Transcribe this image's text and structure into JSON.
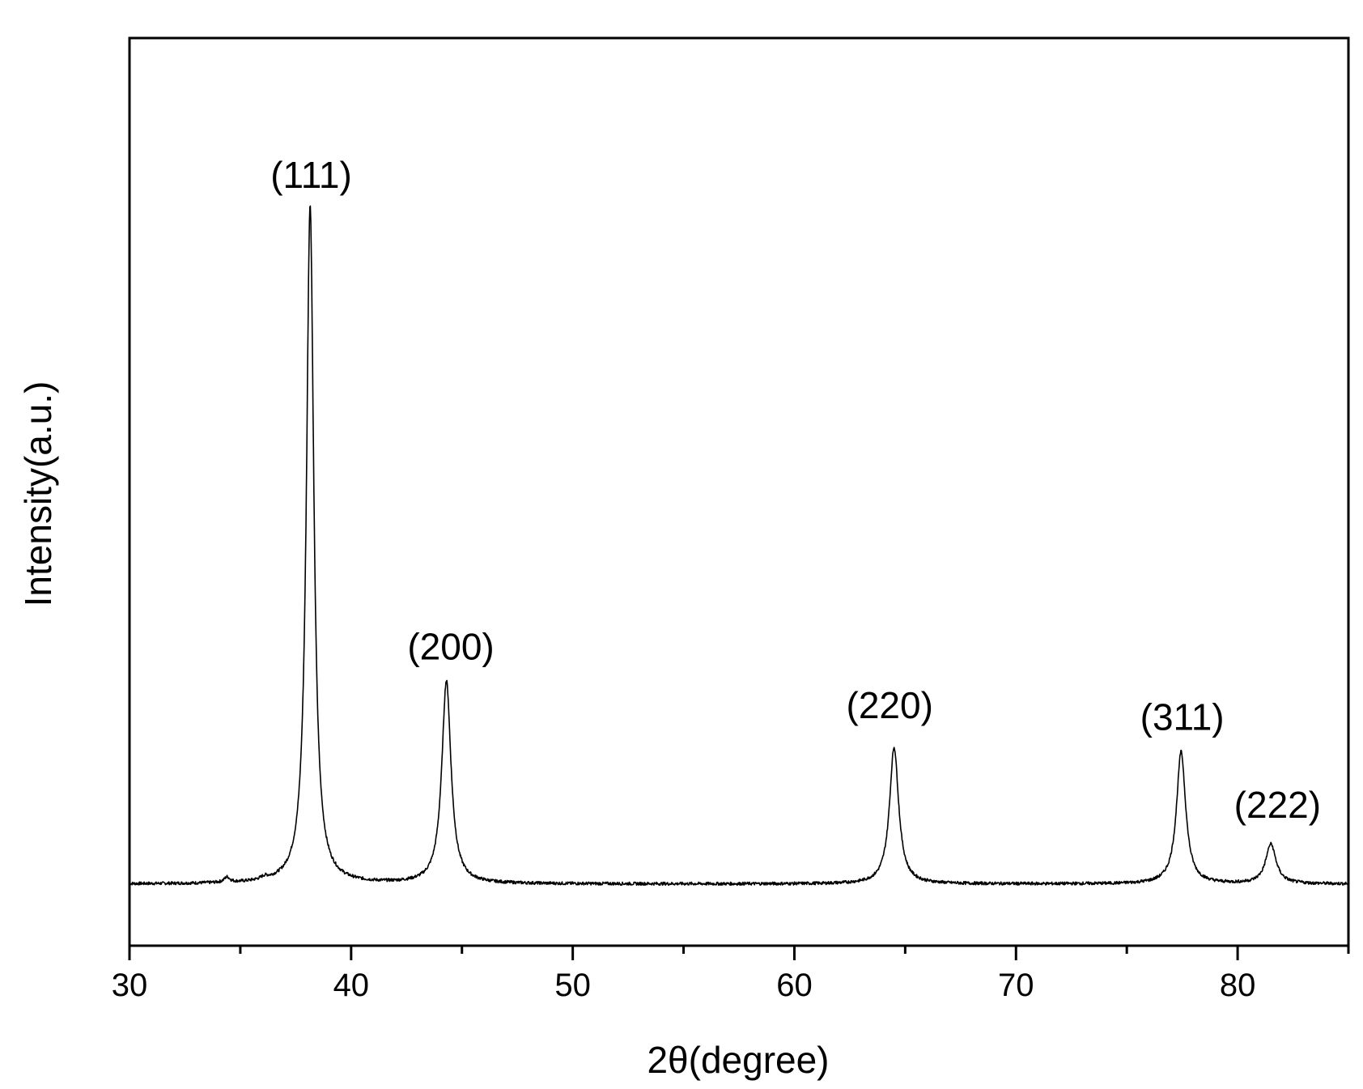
{
  "chart_data": {
    "type": "line",
    "title": "",
    "xlabel": "2θ(degree)",
    "ylabel": "Intensity(a.u.)",
    "xlim": [
      30,
      85
    ],
    "ylim": [
      -7,
      96
    ],
    "x_ticks": [
      30,
      40,
      50,
      60,
      70,
      80
    ],
    "x_tick_labels": [
      "30",
      "40",
      "50",
      "60",
      "70",
      "80"
    ],
    "x_minor_ticks": [
      35,
      45,
      55,
      65,
      75,
      85
    ],
    "y_tick_labels": [],
    "grid": false,
    "legend": "none",
    "line_color": "#000000",
    "baseline": 0,
    "series": [
      {
        "peaks": [
          {
            "x": 34.4,
            "height": 0.6,
            "width": 0.15
          },
          {
            "x": 36.1,
            "height": 0.3,
            "width": 0.2
          },
          {
            "x": 38.15,
            "height": 77,
            "width": 0.2
          },
          {
            "x": 44.3,
            "height": 23,
            "width": 0.25
          },
          {
            "x": 64.5,
            "height": 15.5,
            "width": 0.25
          },
          {
            "x": 77.45,
            "height": 15,
            "width": 0.25
          },
          {
            "x": 81.5,
            "height": 4.5,
            "width": 0.28
          }
        ]
      }
    ],
    "annotations": [
      {
        "text": "(111)",
        "x": 38.2,
        "y": 79
      },
      {
        "text": "(200)",
        "x": 44.5,
        "y": 25.5
      },
      {
        "text": "(220)",
        "x": 64.3,
        "y": 18.8
      },
      {
        "text": "(311)",
        "x": 77.5,
        "y": 17.5
      },
      {
        "text": "(222)",
        "x": 81.8,
        "y": 7.5
      }
    ]
  }
}
